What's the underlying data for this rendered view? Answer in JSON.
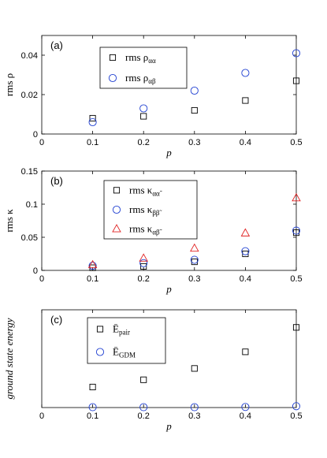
{
  "chart_data": [
    {
      "type": "scatter",
      "panel_label": "(a)",
      "xlabel": "p",
      "ylabel": "rms ρ",
      "xlim": [
        0,
        0.5
      ],
      "ylim": [
        0,
        0.05
      ],
      "xticks": [
        "0",
        "0.1",
        "0.2",
        "0.3",
        "0.4",
        "0.5"
      ],
      "yticks": [
        "0",
        "0.02",
        "0.04"
      ],
      "legend_position": "upper-center",
      "series": [
        {
          "name": "rms ρ_αα",
          "marker": "square",
          "color": "#000000",
          "x": [
            0.1,
            0.2,
            0.3,
            0.4,
            0.5
          ],
          "y": [
            0.008,
            0.009,
            0.012,
            0.017,
            0.027
          ]
        },
        {
          "name": "rms ρ_αβ",
          "marker": "circle",
          "color": "#1f3fd1",
          "x": [
            0.1,
            0.2,
            0.3,
            0.4,
            0.5
          ],
          "y": [
            0.006,
            0.013,
            0.022,
            0.031,
            0.041
          ]
        }
      ]
    },
    {
      "type": "scatter",
      "panel_label": "(b)",
      "xlabel": "p",
      "ylabel": "rms κ",
      "xlim": [
        0,
        0.5
      ],
      "ylim": [
        0,
        0.15
      ],
      "xticks": [
        "0",
        "0.1",
        "0.2",
        "0.3",
        "0.4",
        "0.5"
      ],
      "yticks": [
        "0",
        "0.05",
        "0.1",
        "0.15"
      ],
      "legend_position": "upper-center",
      "series": [
        {
          "name": "rms κ_αα̃",
          "marker": "square",
          "color": "#000000",
          "x": [
            0.1,
            0.2,
            0.3,
            0.4,
            0.5
          ],
          "y": [
            0.004,
            0.006,
            0.013,
            0.025,
            0.057
          ]
        },
        {
          "name": "rms κ_ββ̃",
          "marker": "circle",
          "color": "#1f3fd1",
          "x": [
            0.1,
            0.2,
            0.3,
            0.4,
            0.5
          ],
          "y": [
            0.007,
            0.011,
            0.016,
            0.029,
            0.06
          ]
        },
        {
          "name": "rms κ_αβ̃",
          "marker": "triangle",
          "color": "#e02020",
          "x": [
            0.1,
            0.2,
            0.3,
            0.4,
            0.5
          ],
          "y": [
            0.008,
            0.018,
            0.033,
            0.056,
            0.109
          ]
        }
      ]
    },
    {
      "type": "scatter",
      "panel_label": "(c)",
      "xlabel": "p",
      "ylabel": "ground state energy",
      "xlim": [
        0,
        0.5
      ],
      "ylim": [
        0,
        5
      ],
      "xticks": [
        "0",
        "0.1",
        "0.2",
        "0.3",
        "0.4",
        "0.5"
      ],
      "yticks": [],
      "legend_position": "upper-left",
      "series": [
        {
          "name": "Ē_pair",
          "marker": "square",
          "color": "#000000",
          "x": [
            0.1,
            0.2,
            0.3,
            0.4,
            0.5
          ],
          "y": [
            1.05,
            1.42,
            2.0,
            2.85,
            4.1
          ]
        },
        {
          "name": "Ē_GDM",
          "marker": "circle",
          "color": "#1f3fd1",
          "x": [
            0.1,
            0.2,
            0.3,
            0.4,
            0.5
          ],
          "y": [
            0.02,
            0.02,
            0.02,
            0.03,
            0.07
          ]
        }
      ]
    }
  ]
}
